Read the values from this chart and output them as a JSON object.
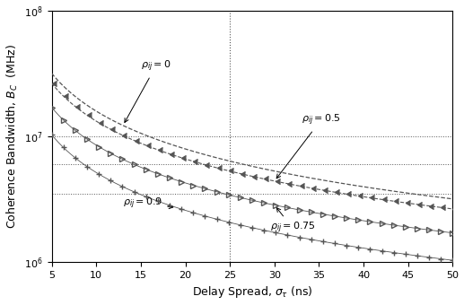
{
  "title": "",
  "xlabel": "Delay Spread, $\\sigma_{\\tau}$ (ns)",
  "ylabel": "Coherence Bandwidth, $B_C$  (MHz)",
  "xlim": [
    5,
    50
  ],
  "ylim": [
    1,
    100
  ],
  "x_ticks": [
    5,
    10,
    15,
    20,
    25,
    30,
    35,
    40,
    45,
    50
  ],
  "y_ticks": [
    1,
    10,
    100
  ],
  "y_tick_labels": [
    "$10^6$",
    "$10^7$",
    "$10^8$"
  ],
  "vline_x": 25,
  "hlines": [
    10.0,
    6.0,
    3.5
  ],
  "rho_values": [
    0,
    0.5,
    0.75,
    0.9
  ],
  "line_color": "#555555",
  "background_color": "#ffffff",
  "n_markers": 35
}
